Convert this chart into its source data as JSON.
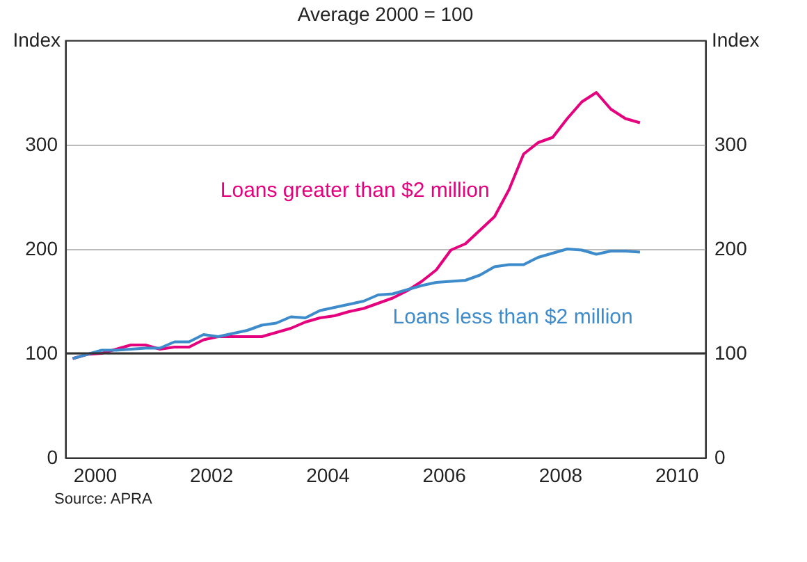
{
  "chart_data": {
    "type": "line",
    "title": "Average 2000 = 100",
    "ylabel": "Index",
    "y2label": "Index",
    "x": [
      2000.125,
      2000.375,
      2000.625,
      2000.875,
      2001.125,
      2001.375,
      2001.625,
      2001.875,
      2002.125,
      2002.375,
      2002.625,
      2002.875,
      2003.125,
      2003.375,
      2003.625,
      2003.875,
      2004.125,
      2004.375,
      2004.625,
      2004.875,
      2005.125,
      2005.375,
      2005.625,
      2005.875,
      2006.125,
      2006.375,
      2006.625,
      2006.875,
      2007.125,
      2007.375,
      2007.625,
      2007.875,
      2008.125,
      2008.375,
      2008.625,
      2008.875,
      2009.125,
      2009.375,
      2009.625,
      2009.875
    ],
    "series": [
      {
        "name": "Loans greater than $2 million",
        "color": "#e5007d",
        "values": [
          95,
          99,
          100,
          104,
          108,
          108,
          104,
          106,
          106,
          113,
          116,
          116,
          116,
          116,
          120,
          124,
          130,
          134,
          136,
          140,
          143,
          148,
          153,
          160,
          169,
          180,
          199,
          205,
          218,
          231,
          257,
          291,
          302,
          307,
          325,
          341,
          350,
          334,
          325,
          321
        ]
      },
      {
        "name": "Loans less than $2 million",
        "color": "#3d8bcb",
        "values": [
          95,
          99,
          103,
          103,
          104,
          105,
          105,
          111,
          111,
          118,
          116,
          119,
          122,
          127,
          129,
          135,
          134,
          141,
          144,
          147,
          150,
          156,
          157,
          161,
          165,
          168,
          169,
          170,
          175,
          183,
          185,
          185,
          192,
          196,
          200,
          199,
          195,
          198,
          198,
          197
        ]
      }
    ],
    "annotations": [
      "Source: APRA"
    ],
    "xlim": [
      2000,
      2011
    ],
    "xticks": [
      {
        "value": 2000.5,
        "label": "2000"
      },
      {
        "value": 2002.5,
        "label": "2002"
      },
      {
        "value": 2004.5,
        "label": "2004"
      },
      {
        "value": 2006.5,
        "label": "2006"
      },
      {
        "value": 2008.5,
        "label": "2008"
      },
      {
        "value": 2010.5,
        "label": "2010"
      }
    ],
    "ylim": [
      0,
      400
    ],
    "yticks": [
      0,
      100,
      200,
      300
    ],
    "y2lim": [
      0,
      400
    ],
    "y2ticks": [
      0,
      100,
      200,
      300
    ],
    "ref_lines": [
      {
        "axis": "y",
        "value": 100,
        "color": "#333333"
      }
    ],
    "grid": "y",
    "legend": false,
    "marker": "none",
    "line_style": "solid"
  }
}
